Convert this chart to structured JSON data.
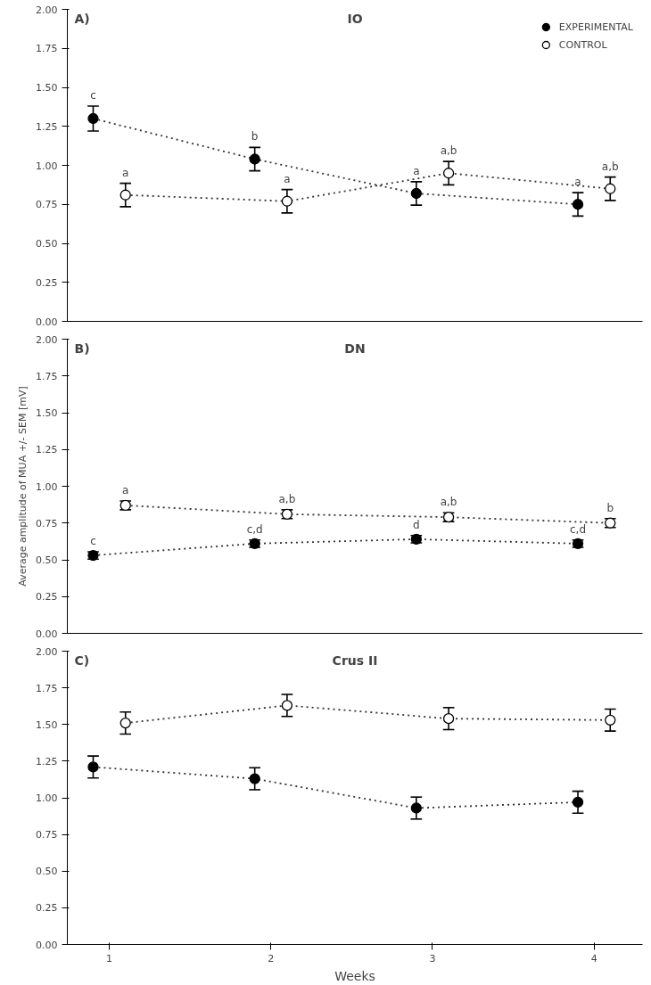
{
  "chart_data": [
    {
      "type": "line",
      "title": "IO",
      "annotations": [
        "A)",
        {
          "text": "c",
          "x": 0.9,
          "y": 1.38
        },
        {
          "text": "b",
          "x": 1.9,
          "y": 1.115
        },
        {
          "text": "a",
          "x": 2.9,
          "y": 0.895
        },
        {
          "text": "a",
          "x": 3.9,
          "y": 0.825
        },
        {
          "text": "a",
          "x": 1.1,
          "y": 0.885
        },
        {
          "text": "a",
          "x": 2.1,
          "y": 0.845
        },
        {
          "text": "a,b",
          "x": 3.1,
          "y": 1.025
        },
        {
          "text": "a,b",
          "x": 4.1,
          "y": 0.925
        }
      ],
      "xlim": [
        0.74,
        4.3
      ],
      "xticks": [
        1,
        2,
        3,
        4
      ],
      "ylim": [
        0,
        2
      ],
      "yticks": [
        {
          "value": 0,
          "label": "0.00"
        },
        {
          "value": 0.25,
          "label": "0.25"
        },
        {
          "value": 0.5,
          "label": "0.50"
        },
        {
          "value": 0.75,
          "label": "0.75"
        },
        {
          "value": 1,
          "label": "1.00"
        },
        {
          "value": 1.25,
          "label": "1.25"
        },
        {
          "value": 1.5,
          "label": "1.50"
        },
        {
          "value": 1.75,
          "label": "1.75"
        },
        {
          "value": 2,
          "label": "2.00"
        }
      ],
      "tick_labels": "y",
      "grid": false,
      "legend": "top right",
      "marker": "circle",
      "line_style": "dotted",
      "series": [
        {
          "name": "EXPERIMENTAL",
          "color": "#000000",
          "x": [
            0.9,
            1.9,
            2.9,
            3.9
          ],
          "values": [
            1.3,
            1.04,
            0.82,
            0.75
          ],
          "errors": [
            0.08,
            0.075,
            0.075,
            0.075
          ]
        },
        {
          "name": "CONTROL",
          "color": "#ffffff",
          "x": [
            1.1,
            2.1,
            3.1,
            4.1
          ],
          "values": [
            0.81,
            0.77,
            0.95,
            0.85
          ],
          "errors": [
            0.075,
            0.075,
            0.075,
            0.075
          ]
        }
      ]
    },
    {
      "type": "line",
      "title": "DN",
      "ylabel": "Average amplitude of MUA +/- SEM [mV]",
      "annotations": [
        "B)",
        {
          "text": "c",
          "x": 0.9,
          "y": 0.555
        },
        {
          "text": "c,d",
          "x": 1.9,
          "y": 0.635
        },
        {
          "text": "d",
          "x": 2.9,
          "y": 0.665
        },
        {
          "text": "c,d",
          "x": 3.9,
          "y": 0.635
        },
        {
          "text": "a",
          "x": 1.1,
          "y": 0.9
        },
        {
          "text": "a,b",
          "x": 2.1,
          "y": 0.84
        },
        {
          "text": "a,b",
          "x": 3.1,
          "y": 0.82
        },
        {
          "text": "b",
          "x": 4.1,
          "y": 0.78
        }
      ],
      "xlim": [
        0.74,
        4.3
      ],
      "xticks": [
        1,
        2,
        3,
        4
      ],
      "ylim": [
        0,
        2
      ],
      "yticks": [
        {
          "value": 0,
          "label": "0.00"
        },
        {
          "value": 0.25,
          "label": "0.25"
        },
        {
          "value": 0.5,
          "label": "0.50"
        },
        {
          "value": 0.75,
          "label": "0.75"
        },
        {
          "value": 1,
          "label": "1.00"
        },
        {
          "value": 1.25,
          "label": "1.25"
        },
        {
          "value": 1.5,
          "label": "1.50"
        },
        {
          "value": 1.75,
          "label": "1.75"
        },
        {
          "value": 2,
          "label": "2.00"
        }
      ],
      "tick_labels": "y",
      "grid": false,
      "marker": "circle",
      "line_style": "dotted",
      "series": [
        {
          "color": "#000000",
          "x": [
            0.9,
            1.9,
            2.9,
            3.9
          ],
          "values": [
            0.53,
            0.61,
            0.64,
            0.61
          ],
          "errors": [
            0.025,
            0.025,
            0.025,
            0.025
          ]
        },
        {
          "color": "#ffffff",
          "x": [
            1.1,
            2.1,
            3.1,
            4.1
          ],
          "values": [
            0.87,
            0.81,
            0.79,
            0.75
          ],
          "errors": [
            0.03,
            0.03,
            0.03,
            0.03
          ]
        }
      ]
    },
    {
      "type": "line",
      "title": "Crus II",
      "xlabel": "Weeks",
      "annotations": [
        "C)"
      ],
      "xlim": [
        0.74,
        4.3
      ],
      "xticks": [
        1,
        2,
        3,
        4
      ],
      "ylim": [
        0,
        2
      ],
      "yticks": [
        {
          "value": 0,
          "label": "0.00"
        },
        {
          "value": 0.25,
          "label": "0.25"
        },
        {
          "value": 0.5,
          "label": "0.50"
        },
        {
          "value": 0.75,
          "label": "0.75"
        },
        {
          "value": 1,
          "label": "1.00"
        },
        {
          "value": 1.25,
          "label": "1.25"
        },
        {
          "value": 1.5,
          "label": "1.50"
        },
        {
          "value": 1.75,
          "label": "1.75"
        },
        {
          "value": 2,
          "label": "2.00"
        }
      ],
      "grid": false,
      "marker": "circle",
      "line_style": "dotted",
      "series": [
        {
          "color": "#000000",
          "x": [
            0.9,
            1.9,
            2.9,
            3.9
          ],
          "values": [
            1.21,
            1.13,
            0.93,
            0.97
          ],
          "errors": [
            0.075,
            0.075,
            0.075,
            0.075
          ]
        },
        {
          "color": "#ffffff",
          "x": [
            1.1,
            2.1,
            3.1,
            4.1
          ],
          "values": [
            1.51,
            1.63,
            1.54,
            1.53
          ],
          "errors": [
            0.075,
            0.075,
            0.075,
            0.075
          ]
        }
      ]
    }
  ]
}
